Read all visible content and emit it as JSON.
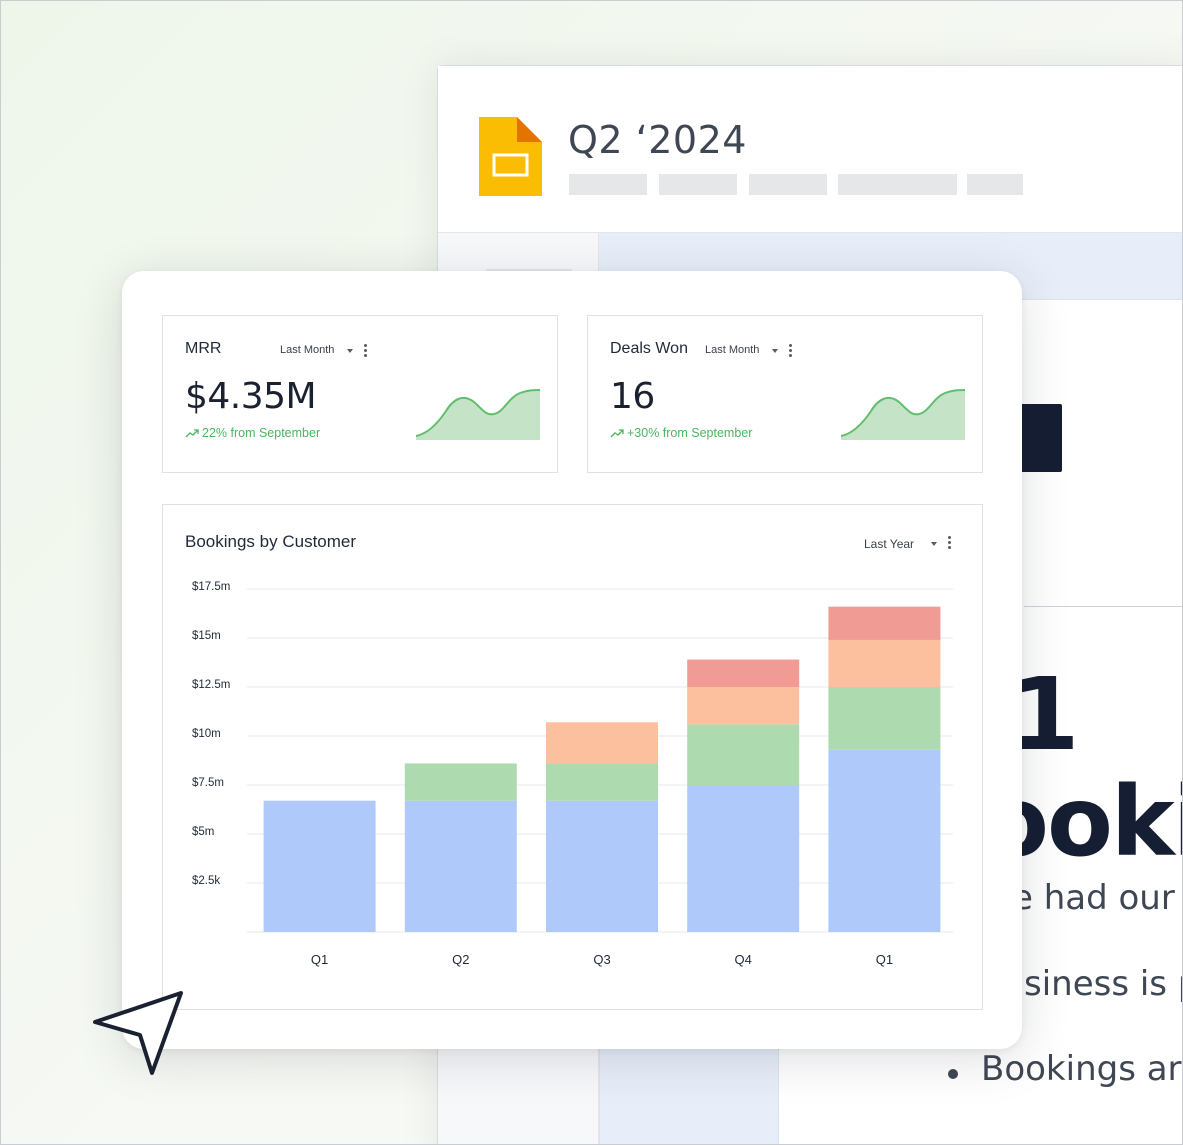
{
  "document": {
    "title": "Q2 ‘2024",
    "heading_number": "1",
    "heading_word": "ooki",
    "body_lines": [
      "e had our",
      "siness is p",
      "Bookings are"
    ]
  },
  "dashboard": {
    "kpis": [
      {
        "title": "MRR",
        "filter": "Last Month",
        "value": "$4.35M",
        "delta": "22% from September"
      },
      {
        "title": "Deals Won",
        "filter": "Last Month",
        "value": "16",
        "delta": "+30% from September"
      }
    ],
    "bookings": {
      "title": "Bookings by Customer",
      "filter": "Last Year"
    }
  },
  "colors": {
    "positive": "#4cb55f",
    "series_blue": "#afcafa",
    "series_green": "#addaae",
    "series_orange": "#fcc09e",
    "series_red": "#f09c94"
  },
  "chart_data": {
    "type": "bar",
    "stacked": true,
    "categories": [
      "Q1",
      "Q2",
      "Q3",
      "Q4",
      "Q1"
    ],
    "y_tick_labels": [
      "$2.5k",
      "$5m",
      "$7.5m",
      "$10m",
      "$12.5m",
      "$15m",
      "$17.5m"
    ],
    "ylim": [
      0,
      17.5
    ],
    "grid": true,
    "series": [
      {
        "color": "#afcafa",
        "values": [
          6.7,
          6.7,
          6.7,
          7.5,
          9.3
        ]
      },
      {
        "color": "#addaae",
        "values": [
          0,
          1.9,
          1.9,
          3.1,
          3.2
        ]
      },
      {
        "color": "#fcc09e",
        "values": [
          0,
          0,
          2.1,
          1.9,
          2.4
        ]
      },
      {
        "color": "#f09c94",
        "values": [
          0,
          0,
          0,
          1.4,
          1.7
        ]
      }
    ]
  }
}
